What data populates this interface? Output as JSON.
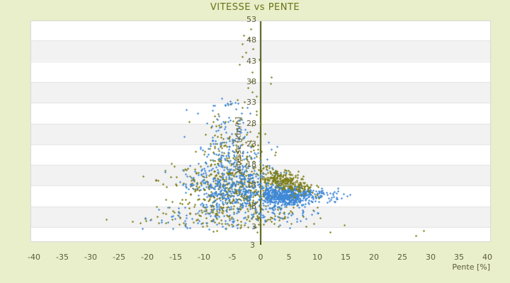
{
  "colors": {
    "background": "#e9eecb",
    "plot_background": "#ffffff",
    "band": "#f2f2f2",
    "band_line": "#e2e2e2",
    "axis_line": "#4d5a11",
    "title_text": "#697313",
    "tick_text": "#5c5c38"
  },
  "chart_data": {
    "type": "scatter",
    "title": "VITESSE vs PENTE",
    "xlabel": "Pente [%]",
    "ylabel": "Vitesse [km/h]",
    "x_ticks": [
      -40,
      -35,
      -30,
      -25,
      -20,
      -15,
      -10,
      -5,
      0,
      5,
      10,
      15,
      20,
      25,
      30,
      35,
      40
    ],
    "y_ticks": [
      53,
      48,
      43,
      38,
      33,
      28,
      23,
      18,
      13,
      8,
      3
    ],
    "y_axis_bottom_label": "3",
    "xlim": [
      -40.5,
      40.5
    ],
    "ylim": [
      0,
      53
    ],
    "grid": "horizontal-bands-every-5",
    "legend": "none",
    "marker": "cross-3px",
    "series": [
      {
        "name": "olive",
        "color": "#7f7f1c",
        "layer": 1,
        "clusters": [
          {
            "n": 400,
            "p": [
              -5,
              4.8
            ],
            "v": [
              12.5,
              3.1
            ],
            "tilt": -0.25,
            "clip": [
              -24,
              10,
              6,
              20
            ]
          },
          {
            "n": 140,
            "p": [
              -4.5,
              3.2
            ],
            "v": [
              21,
              4.6
            ],
            "tilt": -0.15,
            "clip": [
              -13,
              5,
              14,
              34
            ]
          },
          {
            "n": 170,
            "p": [
              -4,
              7
            ],
            "v": [
              6,
              2
            ],
            "clip": [
              -24,
              13,
              1,
              10
            ]
          }
        ],
        "points": [
          [
            -27.3,
            4.8
          ],
          [
            -22.6,
            4.4
          ],
          [
            -21.3,
            4.0
          ],
          [
            -20.3,
            4.6
          ],
          [
            -19.4,
            4.9
          ],
          [
            -18.2,
            5.6
          ],
          [
            -16.8,
            4.1
          ],
          [
            -15.2,
            6.5
          ],
          [
            27.4,
            1.0
          ],
          [
            28.7,
            2.2
          ],
          [
            14.8,
            3.5
          ],
          [
            12.3,
            1.8
          ],
          [
            -1.75,
            50.8
          ],
          [
            -3.0,
            49.3
          ],
          [
            -2.1,
            48.6
          ],
          [
            -3.3,
            47.2
          ],
          [
            -1.4,
            46.0
          ],
          [
            -2.6,
            45.1
          ],
          [
            -3.2,
            44.1
          ],
          [
            -0.3,
            43.4
          ],
          [
            -3.8,
            42.2
          ],
          [
            -1.5,
            40.4
          ],
          [
            1.9,
            39.2
          ],
          [
            -1.6,
            38.1
          ],
          [
            1.75,
            37.6
          ],
          [
            -2.2,
            36.6
          ],
          [
            -1.5,
            35.6
          ],
          [
            -0.8,
            34.6
          ],
          [
            -4.1,
            33.8
          ],
          [
            -2.9,
            33.2
          ]
        ]
      },
      {
        "name": "blue",
        "color": "#4089d8",
        "layer": 2,
        "clusters": [
          {
            "n": 560,
            "p": [
              4.6,
              2.4
            ],
            "v": [
              10.7,
              1.1
            ],
            "clip": [
              0.3,
              13.5,
              8.2,
              13.6
            ]
          },
          {
            "n": 45,
            "p": [
              11,
              2.2
            ],
            "v": [
              10.8,
              0.9
            ],
            "clip": [
              8,
              16.2,
              9,
              12.5
            ]
          },
          {
            "n": 430,
            "p": [
              -4.5,
              4.2
            ],
            "v": [
              12,
              3
            ],
            "tilt": -0.25,
            "clip": [
              -21,
              7,
              6,
              20
            ]
          },
          {
            "n": 150,
            "p": [
              -5,
              3
            ],
            "v": [
              20,
              4.5
            ],
            "tilt": -0.15,
            "clip": [
              -14,
              4,
              14,
              33
            ]
          },
          {
            "n": 90,
            "p": [
              -6,
              5.5
            ],
            "v": [
              5.5,
              1.8
            ],
            "clip": [
              -21,
              11,
              2,
              9
            ]
          },
          {
            "n": 40,
            "p": [
              4,
              3.5
            ],
            "v": [
              7,
              1.5
            ],
            "clip": [
              -2,
              12,
              4,
              9.2
            ]
          },
          {
            "n": 26,
            "p": [
              -5.5,
              2.2
            ],
            "v": [
              30,
              2.4
            ],
            "clip": [
              -10,
              0,
              26,
              34.5
            ]
          }
        ],
        "points": [
          [
            -20.9,
            2.6
          ],
          [
            -15.5,
            2.7
          ],
          [
            -13.2,
            3.2
          ],
          [
            -17.5,
            4.2
          ],
          [
            -12.5,
            2.9
          ],
          [
            12.9,
            10.4
          ],
          [
            13.4,
            11.2
          ],
          [
            11.8,
            9.0
          ]
        ]
      },
      {
        "name": "olive-right-band",
        "color": "#7f7f1c",
        "layer": 3,
        "clusters": [
          {
            "n": 250,
            "p": [
              4.5,
              2.3
            ],
            "vline": [
              16.5,
              -0.55,
              1.2
            ],
            "clip": [
              0.2,
              10.5,
              9.5,
              18.5
            ]
          }
        ],
        "points": []
      }
    ]
  }
}
